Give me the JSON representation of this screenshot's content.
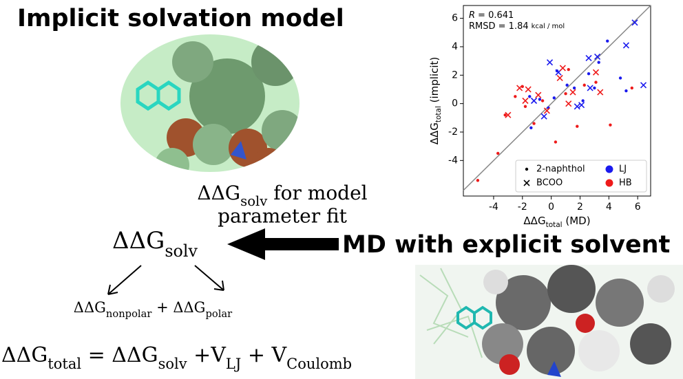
{
  "title": "Implicit solvation model",
  "arrow_label": [
    "ΔΔG",
    "solv",
    " for model"
  ],
  "arrow_label_2": "parameter fit",
  "solv": [
    "ΔΔG",
    "solv"
  ],
  "split": [
    "ΔΔG",
    "nonpolar",
    " + ΔΔG",
    "polar"
  ],
  "equation": [
    "ΔΔG",
    "total",
    " = ΔΔG",
    "solv",
    " +V",
    "LJ",
    " + V",
    "Coulomb"
  ],
  "md_label": "MD with explicit solvent",
  "chart_data": {
    "type": "scatter",
    "r_symbol": "R",
    "r_value": "= 0.641",
    "rmsd": "RMSD = 1.84",
    "rmsd_unit": "kcal / mol",
    "xlabel": [
      "ΔΔG",
      "total",
      " (MD)"
    ],
    "ylabel": [
      "ΔΔG",
      "total",
      " (implicit)"
    ],
    "xlim": [
      -6.1,
      6.9
    ],
    "ylim": [
      -6.5,
      6.9
    ],
    "xticks": [
      -4,
      -2,
      0,
      2,
      4,
      6
    ],
    "yticks": [
      -4,
      -2,
      0,
      2,
      4,
      6
    ],
    "diagonal": true,
    "diagonal_color": "#888888",
    "legend_position": "lower right",
    "legend": [
      {
        "label": "2-naphthol",
        "marker": "o",
        "color": "#000000"
      },
      {
        "label": "LJ",
        "marker": "big",
        "color": "#1a1aee"
      },
      {
        "label": "BCOO",
        "marker": "x",
        "color": "#000000"
      },
      {
        "label": "HB",
        "marker": "big",
        "color": "#ee1a1a"
      }
    ],
    "series": [
      {
        "marker": "o",
        "color": "#1a1aee",
        "x": [
          -1.5,
          -0.8,
          -0.2,
          0.2,
          0.4,
          1.1,
          1.6,
          2.2,
          2.6,
          3.0,
          3.3,
          3.9,
          4.8,
          5.2,
          -1.4
        ],
        "y": [
          0.5,
          0.3,
          -0.3,
          0.4,
          2.3,
          1.3,
          1.1,
          0.2,
          2.1,
          1.1,
          2.9,
          4.4,
          1.8,
          0.9,
          -1.7
        ]
      },
      {
        "marker": "o",
        "color": "#ee1a1a",
        "x": [
          -5.1,
          -3.7,
          -3.2,
          -2.5,
          -2.0,
          -1.8,
          -1.2,
          -0.6,
          0.3,
          1.2,
          1.8,
          2.3,
          3.1,
          4.1,
          5.6,
          1.0
        ],
        "y": [
          -5.4,
          -3.5,
          -0.8,
          0.5,
          1.2,
          -0.2,
          -1.4,
          0.2,
          -2.7,
          2.4,
          -1.6,
          1.3,
          1.5,
          -1.5,
          1.1,
          0.7
        ]
      },
      {
        "marker": "x",
        "color": "#1a1aee",
        "x": [
          -0.1,
          0.5,
          1.8,
          2.1,
          2.6,
          3.2,
          5.2,
          5.8,
          6.4,
          -0.5,
          -1.2,
          2.7
        ],
        "y": [
          2.9,
          2.2,
          -0.2,
          -0.1,
          3.2,
          3.3,
          4.1,
          5.7,
          1.3,
          -0.9,
          0.2,
          1.1
        ]
      },
      {
        "marker": "x",
        "color": "#ee1a1a",
        "x": [
          -3.0,
          -2.2,
          -1.6,
          -1.8,
          -0.9,
          0.8,
          1.5,
          3.1,
          3.4,
          0.6,
          -0.3,
          1.2
        ],
        "y": [
          -0.8,
          1.1,
          1.0,
          0.2,
          0.6,
          2.5,
          0.8,
          2.2,
          0.8,
          1.8,
          -0.5,
          0.0
        ]
      }
    ]
  }
}
